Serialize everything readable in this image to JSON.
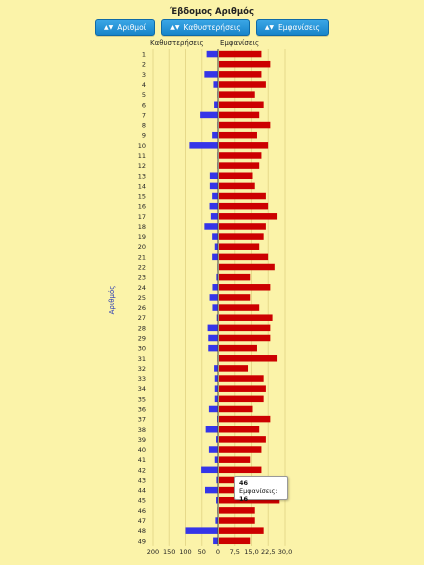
{
  "header": {
    "title": "Έβδομος Αριθμός",
    "buttons": [
      {
        "label": "Αριθμοί",
        "icon": "sort-icon",
        "active": true
      },
      {
        "label": "Καθυστερήσεις",
        "icon": "sort-icon",
        "active": false
      },
      {
        "label": "Εμφανίσεις",
        "icon": "sort-icon",
        "active": false
      }
    ]
  },
  "tooltip": {
    "number": "46",
    "key": "Εμφανίσεις:",
    "value": "16"
  },
  "colors": {
    "delay": "#3535e8",
    "appearance": "#cc0000",
    "background": "#fbf3a9",
    "grid": "#e6d98a"
  },
  "chart_data": [
    {
      "type": "bar",
      "orientation": "horizontal",
      "title": "Έβδομος Αριθμός",
      "ylabel": "Αριθμός",
      "xlabel": "Καθυστερήσεις",
      "categories": [
        "1",
        "2",
        "3",
        "4",
        "5",
        "6",
        "7",
        "8",
        "9",
        "10",
        "11",
        "12",
        "13",
        "14",
        "15",
        "16",
        "17",
        "18",
        "19",
        "20",
        "21",
        "22",
        "23",
        "24",
        "25",
        "26",
        "27",
        "28",
        "29",
        "30",
        "31",
        "32",
        "33",
        "34",
        "35",
        "36",
        "37",
        "38",
        "39",
        "40",
        "41",
        "42",
        "43",
        "44",
        "45",
        "46",
        "47",
        "48",
        "49"
      ],
      "values": [
        35,
        0,
        42,
        14,
        2,
        12,
        55,
        2,
        18,
        88,
        2,
        2,
        25,
        25,
        18,
        26,
        22,
        42,
        18,
        10,
        18,
        2,
        5,
        17,
        26,
        17,
        4,
        32,
        30,
        30,
        2,
        12,
        10,
        10,
        10,
        28,
        3,
        38,
        6,
        28,
        10,
        52,
        5,
        40,
        6,
        2,
        8,
        100,
        15
      ],
      "xlim": [
        0,
        200
      ],
      "xticks": [
        "200",
        "150",
        "100",
        "50",
        "0"
      ],
      "reversed": true
    },
    {
      "type": "bar",
      "orientation": "horizontal",
      "xlabel": "Εμφανίσεις",
      "categories": [
        "1",
        "2",
        "3",
        "4",
        "5",
        "6",
        "7",
        "8",
        "9",
        "10",
        "11",
        "12",
        "13",
        "14",
        "15",
        "16",
        "17",
        "18",
        "19",
        "20",
        "21",
        "22",
        "23",
        "24",
        "25",
        "26",
        "27",
        "28",
        "29",
        "30",
        "31",
        "32",
        "33",
        "34",
        "35",
        "36",
        "37",
        "38",
        "39",
        "40",
        "41",
        "42",
        "43",
        "44",
        "45",
        "46",
        "47",
        "48",
        "49"
      ],
      "values": [
        19,
        23,
        19,
        21,
        16,
        20,
        18,
        23,
        17,
        22,
        19,
        18,
        15,
        16,
        21,
        22,
        26,
        21,
        20,
        18,
        22,
        25,
        14,
        23,
        14,
        18,
        24,
        23,
        23,
        17,
        26,
        13,
        20,
        21,
        20,
        15,
        23,
        18,
        21,
        19,
        14,
        19,
        19,
        18,
        27,
        16,
        16,
        20,
        14
      ],
      "xlim": [
        0,
        30
      ],
      "xticks": [
        "0",
        "7,5",
        "15,0",
        "22,5",
        "30,0"
      ],
      "grid": true
    }
  ]
}
